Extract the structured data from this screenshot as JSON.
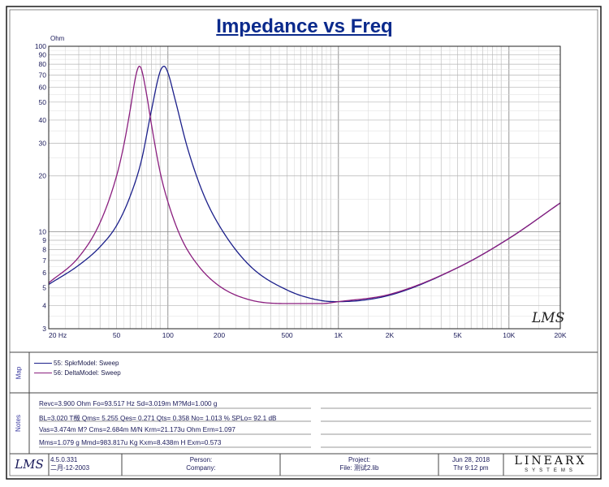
{
  "title": "Impedance vs Freq",
  "chart_data": {
    "type": "line",
    "title": "Impedance vs Freq",
    "ylabel": "Ohm",
    "xscale": "log",
    "yscale": "log",
    "xlim": [
      20,
      20000
    ],
    "ylim": [
      3,
      100
    ],
    "grid": true,
    "x_tick_labels": [
      "20 Hz",
      "50",
      "100",
      "200",
      "500",
      "1K",
      "2K",
      "5K",
      "10K",
      "20K"
    ],
    "y_tick_labels": [
      "100",
      "90",
      "80",
      "70",
      "60",
      "50",
      "40",
      "30",
      "20",
      "10",
      "9",
      "8",
      "7",
      "6",
      "5",
      "4",
      "3"
    ],
    "series": [
      {
        "name": "55: SpkrModel: Sweep",
        "color": "#1b1f8a",
        "x": [
          20,
          30,
          40,
          50,
          60,
          70,
          80,
          90,
          95,
          100,
          110,
          130,
          160,
          200,
          300,
          500,
          800,
          1000,
          2000,
          5000,
          10000,
          20000
        ],
        "y": [
          5.2,
          6.6,
          8.3,
          10.8,
          15.5,
          24.3,
          45,
          73,
          78,
          72,
          52,
          28.5,
          16.3,
          10.8,
          6.6,
          4.85,
          4.25,
          4.2,
          4.55,
          6.4,
          9.2,
          14.3
        ]
      },
      {
        "name": "56: DeltaModel: Sweep",
        "color": "#8a1e7e",
        "x": [
          20,
          30,
          40,
          50,
          55,
          60,
          65,
          68,
          70,
          75,
          80,
          90,
          100,
          120,
          150,
          200,
          300,
          500,
          800,
          1000,
          2000,
          5000,
          10000,
          20000
        ],
        "y": [
          5.3,
          7.3,
          11.2,
          20,
          29,
          45,
          70,
          78,
          75,
          55,
          38,
          21,
          14.5,
          9.2,
          6.6,
          5.1,
          4.3,
          4.1,
          4.1,
          4.2,
          4.6,
          6.4,
          9.2,
          14.3
        ]
      }
    ],
    "watermark": "LMS"
  },
  "map_section": {
    "tab": "Map"
  },
  "notes_section": {
    "tab": "Notes",
    "lines": [
      "Revc=3.900 Ohm  Fo=93.517 Hz  Sd=3.019m M?Md=1.000 g",
      "BL=3.020 T檓  Qms= 5.255  Qes= 0.271  Qts= 0.358  No= 1.013 %  SPLo= 92.1 dB",
      "Vas=3.474m M? Cms=2.684m M/N  Krm=21.173u Ohm  Erm=1.097",
      "Mms=1.079 g  Mmd=983.817u Kg  Kxm=8.438m H  Exm=0.573"
    ]
  },
  "footer": {
    "logo": "LMS",
    "version": "4.5.0.331",
    "build_date": "二月-12-2003",
    "person_label": "Person:",
    "company_label": "Company:",
    "project_label": "Project:",
    "file_label": "File: 测试2.lib",
    "date": "Jun 28, 2018",
    "time": "Thr  9:12 pm",
    "brand": "LINEARX",
    "brand_sub": "SYSTEMS"
  }
}
